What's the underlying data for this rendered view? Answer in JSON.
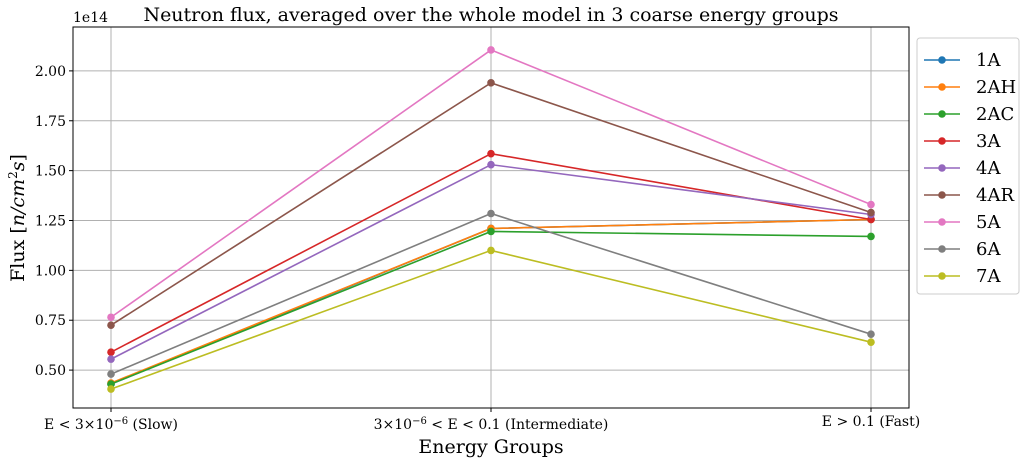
{
  "chart_data": {
    "type": "line",
    "title": "Neutron flux, averaged over the whole model in 3 coarse energy groups",
    "xlabel": "Energy Groups",
    "ylabel": "Flux [n/cm²s]",
    "ylabel_parts": {
      "prefix": "Flux [",
      "n": "n",
      "slash": "/",
      "cm": "cm",
      "sup": "2",
      "s": "s",
      "suffix": "]"
    },
    "y_offset_label": {
      "base": "1e14"
    },
    "categories": [
      {
        "pre": "E < 3",
        "times": "×",
        "base": "10",
        "exp": "−6",
        "post": " (Slow)"
      },
      {
        "pre": "3",
        "times": "×",
        "base": "10",
        "exp": "−6",
        "post": " < E < 0.1 (Intermediate)"
      },
      {
        "pre": "E > 0.1 (Fast)",
        "times": "",
        "base": "",
        "exp": "",
        "post": ""
      }
    ],
    "yticks": [
      "0.50",
      "0.75",
      "1.00",
      "1.25",
      "1.50",
      "1.75",
      "2.00"
    ],
    "ytick_values": [
      0.5,
      0.75,
      1.0,
      1.25,
      1.5,
      1.75,
      2.0
    ],
    "ylim": [
      0.31,
      2.22
    ],
    "grid": true,
    "legend_position": "outside-right",
    "series": [
      {
        "name": "1A",
        "color": "#1f77b4",
        "values": [
          0.43,
          1.21,
          1.255
        ]
      },
      {
        "name": "2AH",
        "color": "#ff7f0e",
        "values": [
          0.435,
          1.21,
          1.255
        ]
      },
      {
        "name": "2AC",
        "color": "#2ca02c",
        "values": [
          0.43,
          1.195,
          1.17
        ]
      },
      {
        "name": "3A",
        "color": "#d62728",
        "values": [
          0.59,
          1.585,
          1.255
        ]
      },
      {
        "name": "4A",
        "color": "#9467bd",
        "values": [
          0.555,
          1.53,
          1.28
        ]
      },
      {
        "name": "4AR",
        "color": "#8c564b",
        "values": [
          0.725,
          1.94,
          1.29
        ]
      },
      {
        "name": "5A",
        "color": "#e377c2",
        "values": [
          0.765,
          2.105,
          1.33
        ]
      },
      {
        "name": "6A",
        "color": "#7f7f7f",
        "values": [
          0.48,
          1.285,
          0.68
        ]
      },
      {
        "name": "7A",
        "color": "#bcbd22",
        "values": [
          0.405,
          1.1,
          0.64
        ]
      }
    ]
  }
}
